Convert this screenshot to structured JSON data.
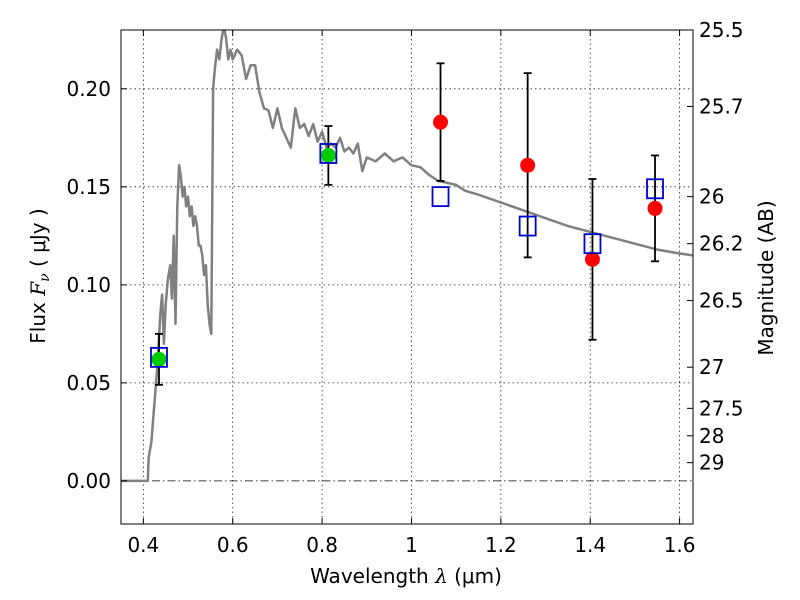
{
  "chart_data": {
    "type": "scatter",
    "xlabel": {
      "prefix": "Wavelength ",
      "symbol": "λ",
      "unit": " (μm)"
    },
    "ylabel": {
      "prefix": "Flux ",
      "symbol": "F",
      "subscript": "ν",
      "unit": " ( μJy )"
    },
    "ylabel_right": "Magnitude (AB)",
    "xlim": [
      0.35,
      1.63
    ],
    "ylim": [
      -0.022,
      0.23
    ],
    "x_ticks": [
      0.4,
      0.6,
      0.8,
      1.0,
      1.2,
      1.4,
      1.6
    ],
    "x_tick_labels": [
      "0.4",
      "0.6",
      "0.8",
      "1",
      "1.2",
      "1.4",
      "1.6"
    ],
    "y_ticks": [
      0.0,
      0.05,
      0.1,
      0.15,
      0.2
    ],
    "y_tick_labels": [
      "0.00",
      "0.05",
      "0.10",
      "0.15",
      "0.20"
    ],
    "right_ticks": [
      {
        "label": "25.5",
        "flux": 0.23
      },
      {
        "label": "25.7",
        "flux": 0.191
      },
      {
        "label": "26",
        "flux": 0.145
      },
      {
        "label": "26.2",
        "flux": 0.121
      },
      {
        "label": "26.5",
        "flux": 0.092
      },
      {
        "label": "27",
        "flux": 0.058
      },
      {
        "label": "27.5",
        "flux": 0.037
      },
      {
        "label": "28",
        "flux": 0.023
      },
      {
        "label": "29",
        "flux": 0.0093
      }
    ],
    "grid": true,
    "series": [
      {
        "kind": "model",
        "color": "#808080",
        "points": [
          [
            0.35,
            0.0
          ],
          [
            0.4,
            0.0
          ],
          [
            0.41,
            0.0
          ],
          [
            0.412,
            0.012
          ],
          [
            0.418,
            0.02
          ],
          [
            0.425,
            0.04
          ],
          [
            0.432,
            0.06
          ],
          [
            0.438,
            0.085
          ],
          [
            0.442,
            0.095
          ],
          [
            0.446,
            0.07
          ],
          [
            0.45,
            0.09
          ],
          [
            0.455,
            0.103
          ],
          [
            0.46,
            0.11
          ],
          [
            0.464,
            0.093
          ],
          [
            0.468,
            0.125
          ],
          [
            0.472,
            0.08
          ],
          [
            0.476,
            0.14
          ],
          [
            0.48,
            0.161
          ],
          [
            0.484,
            0.155
          ],
          [
            0.488,
            0.145
          ],
          [
            0.492,
            0.15
          ],
          [
            0.496,
            0.14
          ],
          [
            0.5,
            0.145
          ],
          [
            0.504,
            0.135
          ],
          [
            0.508,
            0.14
          ],
          [
            0.512,
            0.13
          ],
          [
            0.516,
            0.135
          ],
          [
            0.52,
            0.13
          ],
          [
            0.524,
            0.12
          ],
          [
            0.528,
            0.12
          ],
          [
            0.532,
            0.115
          ],
          [
            0.536,
            0.105
          ],
          [
            0.54,
            0.11
          ],
          [
            0.544,
            0.09
          ],
          [
            0.548,
            0.08
          ],
          [
            0.552,
            0.075
          ],
          [
            0.556,
            0.2
          ],
          [
            0.56,
            0.21
          ],
          [
            0.565,
            0.22
          ],
          [
            0.57,
            0.215
          ],
          [
            0.575,
            0.225
          ],
          [
            0.58,
            0.232
          ],
          [
            0.585,
            0.226
          ],
          [
            0.59,
            0.215
          ],
          [
            0.595,
            0.22
          ],
          [
            0.6,
            0.215
          ],
          [
            0.61,
            0.22
          ],
          [
            0.62,
            0.217
          ],
          [
            0.63,
            0.205
          ],
          [
            0.64,
            0.212
          ],
          [
            0.65,
            0.212
          ],
          [
            0.66,
            0.198
          ],
          [
            0.67,
            0.19
          ],
          [
            0.68,
            0.189
          ],
          [
            0.69,
            0.18
          ],
          [
            0.7,
            0.19
          ],
          [
            0.71,
            0.18
          ],
          [
            0.72,
            0.175
          ],
          [
            0.73,
            0.17
          ],
          [
            0.74,
            0.19
          ],
          [
            0.75,
            0.18
          ],
          [
            0.76,
            0.182
          ],
          [
            0.77,
            0.176
          ],
          [
            0.78,
            0.182
          ],
          [
            0.79,
            0.173
          ],
          [
            0.8,
            0.178
          ],
          [
            0.81,
            0.17
          ],
          [
            0.82,
            0.172
          ],
          [
            0.83,
            0.17
          ],
          [
            0.84,
            0.175
          ],
          [
            0.85,
            0.168
          ],
          [
            0.86,
            0.17
          ],
          [
            0.87,
            0.167
          ],
          [
            0.88,
            0.172
          ],
          [
            0.89,
            0.158
          ],
          [
            0.9,
            0.165
          ],
          [
            0.92,
            0.163
          ],
          [
            0.94,
            0.167
          ],
          [
            0.96,
            0.163
          ],
          [
            0.98,
            0.165
          ],
          [
            1.0,
            0.161
          ],
          [
            1.02,
            0.16
          ],
          [
            1.04,
            0.156
          ],
          [
            1.06,
            0.153
          ],
          [
            1.08,
            0.152
          ],
          [
            1.1,
            0.151
          ],
          [
            1.12,
            0.148
          ],
          [
            1.15,
            0.146
          ],
          [
            1.2,
            0.142
          ],
          [
            1.25,
            0.138
          ],
          [
            1.3,
            0.134
          ],
          [
            1.35,
            0.13
          ],
          [
            1.4,
            0.127
          ],
          [
            1.45,
            0.124
          ],
          [
            1.5,
            0.121
          ],
          [
            1.55,
            0.118
          ],
          [
            1.6,
            0.116
          ],
          [
            1.63,
            0.115
          ]
        ]
      },
      {
        "kind": "observed",
        "color": "#ff0000",
        "points": [
          {
            "x": 1.065,
            "y": 0.183,
            "err": 0.03
          },
          {
            "x": 1.26,
            "y": 0.161,
            "err": 0.047
          },
          {
            "x": 1.405,
            "y": 0.113,
            "err": 0.041
          },
          {
            "x": 1.545,
            "y": 0.139,
            "err": 0.027
          }
        ]
      },
      {
        "kind": "observed",
        "color": "#00cc00",
        "points": [
          {
            "x": 0.435,
            "y": 0.062,
            "err": 0.013
          },
          {
            "x": 0.814,
            "y": 0.166,
            "err": 0.015
          }
        ]
      },
      {
        "kind": "model-band",
        "color": "#0000cc",
        "points": [
          {
            "x": 0.435,
            "y": 0.063
          },
          {
            "x": 0.814,
            "y": 0.167
          },
          {
            "x": 1.065,
            "y": 0.145
          },
          {
            "x": 1.26,
            "y": 0.13
          },
          {
            "x": 1.405,
            "y": 0.121
          },
          {
            "x": 1.545,
            "y": 0.149
          }
        ]
      }
    ]
  }
}
